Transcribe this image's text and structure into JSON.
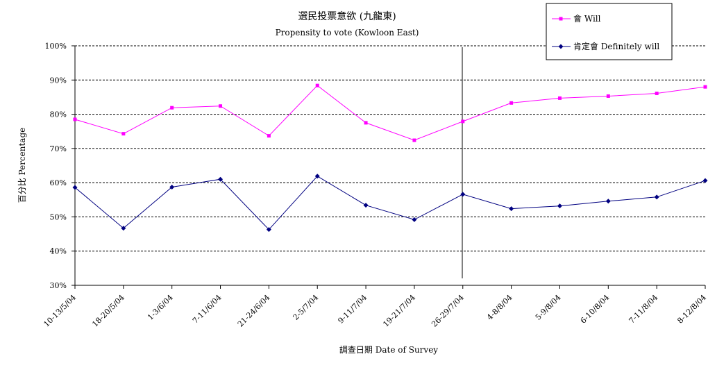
{
  "chart_data": {
    "type": "line",
    "title": "選民投票意欲 (九龍東)",
    "subtitle": "Propensity to vote (Kowloon East)",
    "xlabel": "調查日期 Date of Survey",
    "ylabel": "百分比 Percentage",
    "ylim": [
      30,
      100
    ],
    "ytick_labels": [
      "30%",
      "40%",
      "50%",
      "60%",
      "70%",
      "80%",
      "90%",
      "100%"
    ],
    "grid": "horizontal dashed",
    "legend_position": "top-right",
    "divider_after_category": "26-29/7/04",
    "categories": [
      "10-13/5/04",
      "18-20/5/04",
      "1-3/6/04",
      "7-11/6/04",
      "21-24/6/04",
      "2-5/7/04",
      "9-11/7/04",
      "19-21/7/04",
      "26-29/7/04",
      "4-8/8/04",
      "5-9/8/04",
      "6-10/8/04",
      "7-11/8/04",
      "8-12/8/04"
    ],
    "series": [
      {
        "name": "會 Will",
        "color": "#ff00ff",
        "marker": "square",
        "values": [
          78.5,
          74.3,
          81.9,
          82.4,
          73.7,
          88.4,
          77.5,
          72.4,
          77.9,
          83.3,
          84.7,
          85.3,
          86.1,
          88.0
        ]
      },
      {
        "name": "肯定會 Definitely will",
        "color": "#000080",
        "marker": "diamond",
        "values": [
          58.6,
          46.7,
          58.7,
          61.0,
          46.3,
          61.9,
          53.4,
          49.2,
          56.6,
          52.4,
          53.2,
          54.6,
          55.8,
          60.6
        ]
      }
    ]
  }
}
